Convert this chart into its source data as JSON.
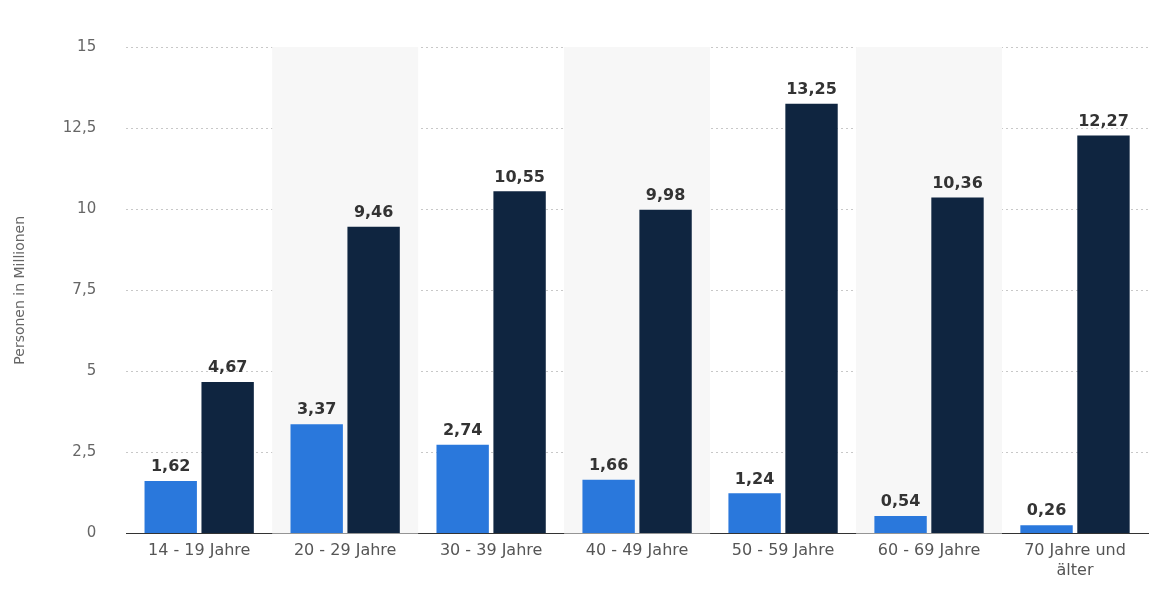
{
  "chart_data": {
    "type": "bar",
    "ylabel": "Personen in Millionen",
    "categories": [
      "14 - 19 Jahre",
      "20 - 29 Jahre",
      "30 - 39 Jahre",
      "40 - 49 Jahre",
      "50 - 59 Jahre",
      "60 - 69 Jahre",
      "70 Jahre und älter"
    ],
    "series": [
      {
        "color": "#2a78dc",
        "values": [
          1.62,
          3.37,
          2.74,
          1.66,
          1.24,
          0.54,
          0.26
        ],
        "value_labels": [
          "1,62",
          "3,37",
          "2,74",
          "1,66",
          "1,24",
          "0,54",
          "0,26"
        ]
      },
      {
        "color": "#0f2540",
        "values": [
          4.67,
          9.46,
          10.55,
          9.98,
          13.25,
          10.36,
          12.27
        ],
        "value_labels": [
          "4,67",
          "9,46",
          "10,55",
          "9,98",
          "13,25",
          "10,36",
          "12,27"
        ]
      }
    ],
    "ylim": [
      0,
      15
    ],
    "yticks": [
      0,
      {
        "value": 2.5,
        "label": "2,5"
      },
      5,
      {
        "value": 7.5,
        "label": "7,5"
      },
      10,
      {
        "value": 12.5,
        "label": "12,5"
      },
      15
    ],
    "grid": "y",
    "legend": false,
    "bands": [
      {
        "axis": "x",
        "from": "20 - 29 Jahre",
        "to": "20 - 29 Jahre",
        "color": "#f7f7f7"
      },
      {
        "axis": "x",
        "from": "40 - 49 Jahre",
        "to": "40 - 49 Jahre",
        "color": "#f7f7f7"
      },
      {
        "axis": "x",
        "from": "60 - 69 Jahre",
        "to": "60 - 69 Jahre",
        "color": "#f7f7f7"
      }
    ]
  }
}
